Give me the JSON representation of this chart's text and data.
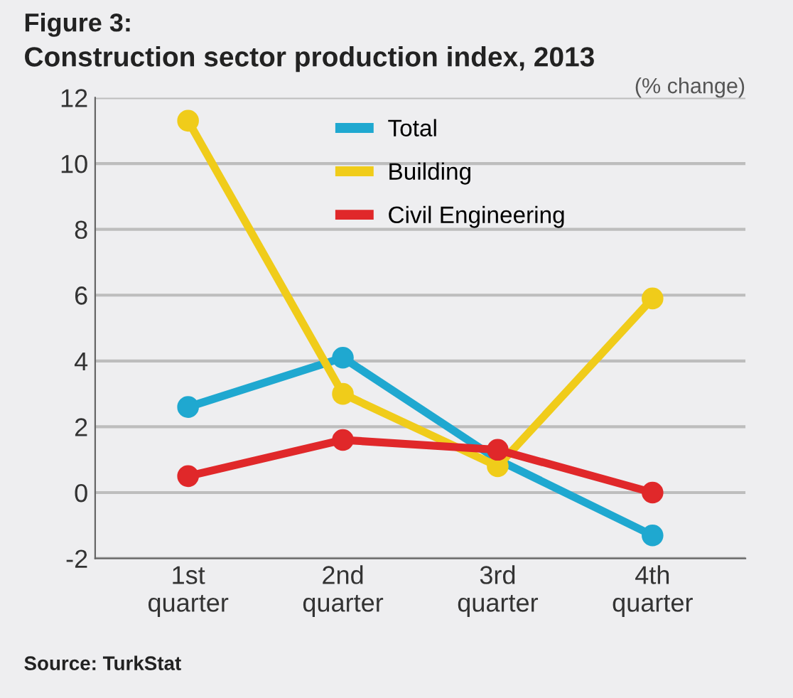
{
  "chart_data": {
    "type": "line",
    "title": "Figure 3:",
    "subtitle": "Construction sector production index, 2013",
    "categories": [
      "1st\nquarter",
      "2nd\nquarter",
      "3rd\nquarter",
      "4th\nquarter"
    ],
    "series": [
      {
        "name": "Total",
        "color": "#1fa8d0",
        "values": [
          2.6,
          4.1,
          1.0,
          -1.3
        ]
      },
      {
        "name": "Building",
        "color": "#f0cc1a",
        "values": [
          11.3,
          3.0,
          0.8,
          5.9
        ]
      },
      {
        "name": "Civil Engineering",
        "color": "#e0282a",
        "values": [
          0.5,
          1.6,
          1.3,
          0.0
        ]
      }
    ],
    "ylim": [
      -2,
      12
    ],
    "yticks": [
      -2,
      0,
      2,
      4,
      6,
      8,
      10,
      12
    ],
    "grid": "y",
    "legend": "top",
    "marker": "circle",
    "line_style": "solid",
    "annotations": [
      "(% change)",
      "Source: TurkStat"
    ]
  }
}
